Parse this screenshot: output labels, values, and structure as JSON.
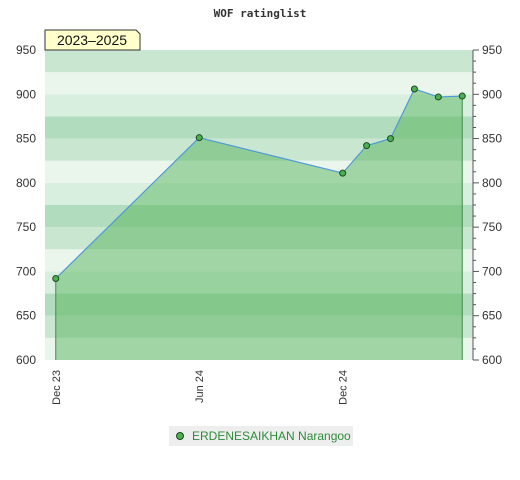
{
  "chart_data": {
    "type": "area",
    "title": "WOF ratinglist",
    "period_label": "2023–2025",
    "x_tick_labels": [
      "Dec 23",
      "Jun 24",
      "Dec 24"
    ],
    "x_tick_months": [
      0,
      6,
      12
    ],
    "y_ticks": [
      600,
      650,
      700,
      750,
      800,
      850,
      900,
      950
    ],
    "ylim": [
      600,
      950
    ],
    "xlim_months": [
      -0.45,
      17.45
    ],
    "grid": "horizontal bands",
    "legend_position": "bottom",
    "series": [
      {
        "name": "ERDENESAIKHAN Narangoo",
        "color": "#4caf50",
        "x_months": [
          0,
          6,
          12,
          13,
          14,
          15,
          16,
          17
        ],
        "y": [
          692,
          851,
          811,
          842,
          850,
          906,
          897,
          898
        ]
      }
    ]
  }
}
